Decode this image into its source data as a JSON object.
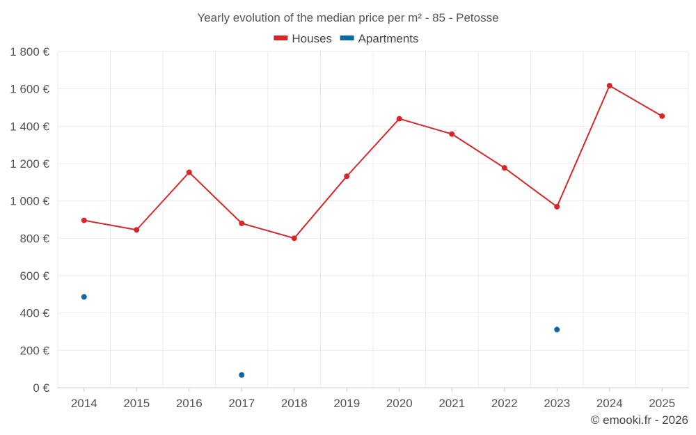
{
  "chart_data": {
    "type": "line",
    "title": "Yearly evolution of the median price per m² - 85 - Petosse",
    "categories": [
      "2014",
      "2015",
      "2016",
      "2017",
      "2018",
      "2019",
      "2020",
      "2021",
      "2022",
      "2023",
      "2024",
      "2025"
    ],
    "series": [
      {
        "name": "Houses",
        "color": "#d62728",
        "values": [
          896,
          845,
          1153,
          880,
          800,
          1132,
          1440,
          1358,
          1177,
          969,
          1617,
          1454
        ]
      },
      {
        "name": "Apartments",
        "color": "#0868a8",
        "values": [
          486,
          null,
          null,
          68,
          null,
          null,
          null,
          null,
          null,
          311,
          null,
          null
        ]
      }
    ],
    "y_ticks": [
      0,
      200,
      400,
      600,
      800,
      1000,
      1200,
      1400,
      1600,
      1800
    ],
    "y_tick_labels": [
      "0 €",
      "200 €",
      "400 €",
      "600 €",
      "800 €",
      "1 000 €",
      "1 200 €",
      "1 400 €",
      "1 600 €",
      "1 800 €"
    ],
    "ylim": [
      0,
      1800
    ],
    "xlabel": "",
    "ylabel": "",
    "legend": "top-center",
    "grid": true
  },
  "footer": "© emooki.fr - 2026"
}
